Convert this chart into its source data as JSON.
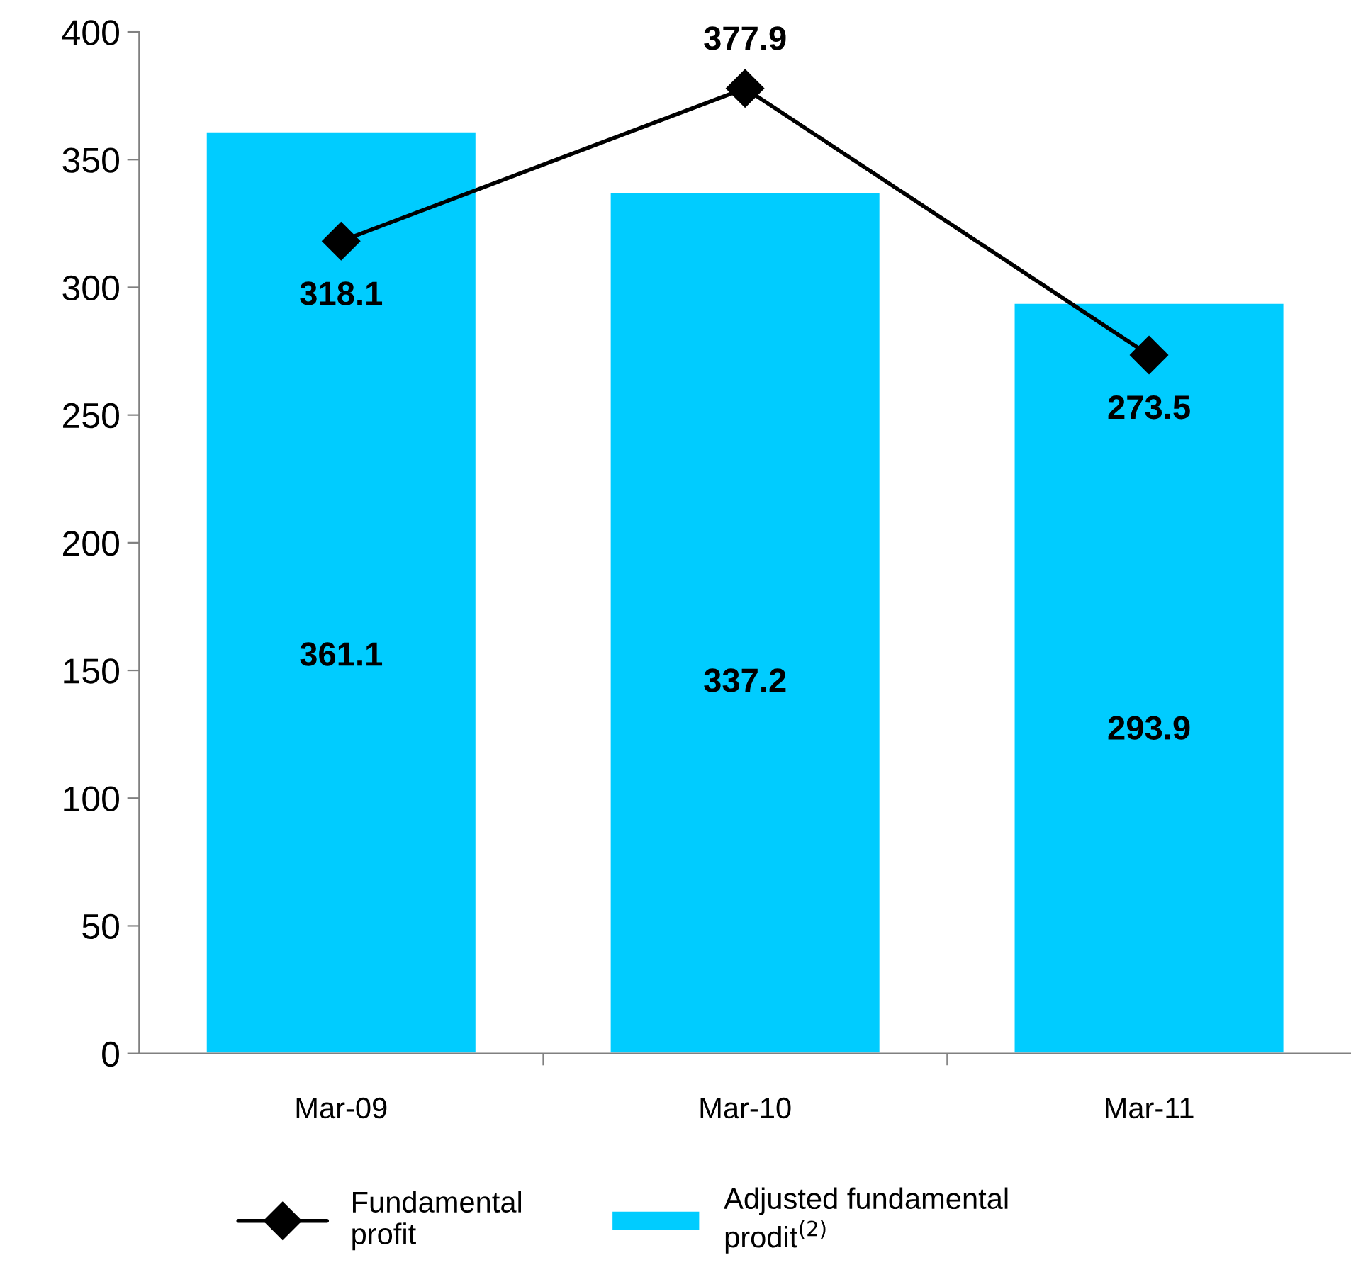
{
  "chart_data": {
    "type": "bar",
    "categories": [
      "Mar-09",
      "Mar-10",
      "Mar-11"
    ],
    "series": [
      {
        "name": "Fundamental\nprofit",
        "type": "line",
        "color": "#000000",
        "marker": "diamond",
        "values": [
          318.1,
          377.9,
          273.5
        ]
      },
      {
        "name": "Adjusted fundamental\nprodit$^{(2)}$",
        "color": "#00ccff",
        "values": [
          361.1,
          337.2,
          293.9
        ]
      }
    ],
    "ylim": [
      0,
      400
    ],
    "yticks": [
      0,
      50,
      100,
      150,
      200,
      250,
      300,
      350,
      400
    ],
    "data_labels": true,
    "grid": false,
    "legend": "bottom"
  }
}
